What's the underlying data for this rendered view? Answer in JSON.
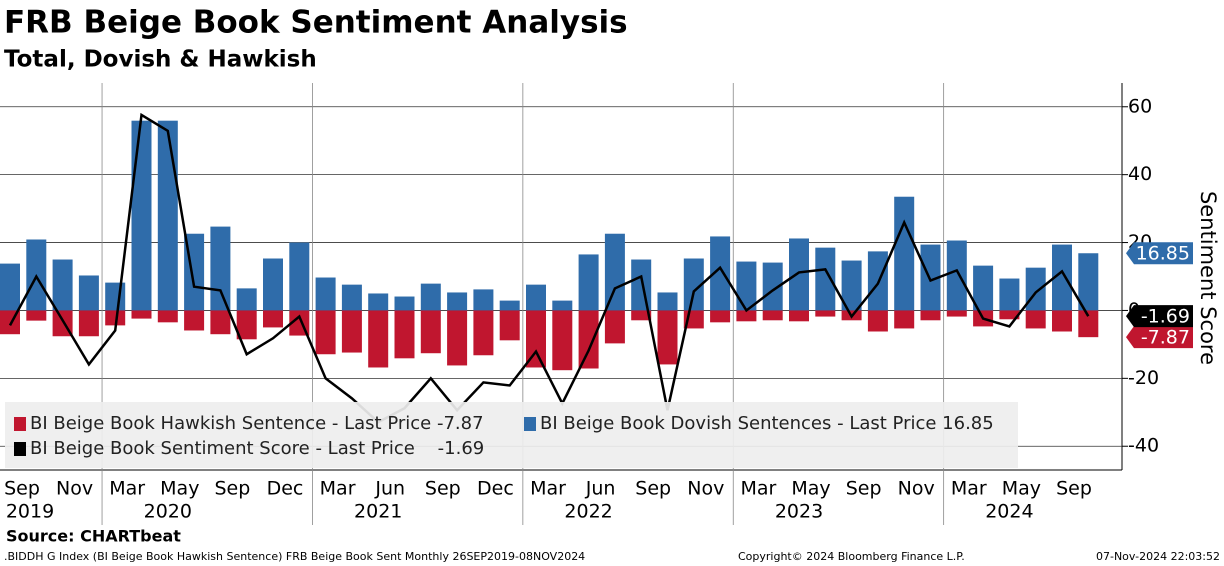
{
  "chart_data": {
    "type": "bar+line",
    "title": "FRB Beige Book Sentiment Analysis",
    "subtitle": "Total, Dovish & Hawkish",
    "y_label": "Sentiment Score",
    "source": "Source: CHARTbeat",
    "footer_left": ".BIDDH G Index (BI Beige Book Hawkish Sentence) FRB Beige Book Sent  Monthly 26SEP2019-08NOV2024",
    "footer_center": "Copyright© 2024 Bloomberg Finance L.P.",
    "footer_right": "07-Nov-2024 22:03:52",
    "categories": [
      "Sep",
      null,
      "Nov",
      null,
      "Mar",
      null,
      "May",
      null,
      "Sep",
      null,
      "Dec",
      null,
      "Mar",
      null,
      "Jun",
      null,
      "Sep",
      null,
      "Dec",
      null,
      "Mar",
      null,
      "Jun",
      null,
      "Sep",
      null,
      "Nov",
      null,
      "Mar",
      null,
      "May",
      null,
      "Sep",
      null,
      "Nov",
      null,
      "Mar",
      null,
      "May",
      null,
      "Sep",
      null
    ],
    "year_labels": [
      "2019",
      null,
      null,
      null,
      null,
      null,
      "2020",
      null,
      null,
      null,
      null,
      null,
      null,
      null,
      "2021",
      null,
      null,
      null,
      null,
      null,
      null,
      null,
      "2022",
      null,
      null,
      null,
      null,
      null,
      null,
      null,
      "2023",
      null,
      null,
      null,
      null,
      null,
      null,
      null,
      "2024",
      null,
      null,
      null
    ],
    "series": [
      {
        "name": "BI Beige Book Dovish Sentences - Last Price 16.85",
        "kind": "bar",
        "color": "#2f6caa",
        "values": [
          13.8,
          20.9,
          15,
          10.3,
          8.2,
          55.9,
          55.9,
          22.6,
          24.7,
          6.5,
          15.3,
          20,
          9.7,
          7.6,
          5,
          4.1,
          7.9,
          5.3,
          6.2,
          2.9,
          7.6,
          2.9,
          16.5,
          22.6,
          15,
          5.3,
          15.3,
          21.8,
          14.4,
          14.1,
          21.2,
          18.5,
          14.7,
          17.4,
          33.5,
          19.4,
          20.6,
          13.2,
          9.4,
          12.6,
          19.4,
          16.85
        ]
      },
      {
        "name": "BI Beige Book Hawkish Sentence - Last Price -7.87",
        "kind": "bar",
        "color": "#c0162f",
        "values": [
          -7,
          -3,
          -7.6,
          -7.6,
          -4.4,
          -2.4,
          -3.5,
          -5.9,
          -7,
          -8.5,
          -5,
          -7.4,
          -12.9,
          -12.4,
          -16.8,
          -14.1,
          -12.6,
          -16.2,
          -13.2,
          -8.8,
          -16.8,
          -17.6,
          -17.1,
          -9.7,
          -2.9,
          -15.9,
          -5.3,
          -3.5,
          -3.2,
          -2.9,
          -3.2,
          -1.8,
          -2.9,
          -6.2,
          -5.3,
          -2.9,
          -1.8,
          -4.7,
          -2.6,
          -5.3,
          -6.2,
          -7.87
        ]
      },
      {
        "name": "BI Beige Book Sentiment Score - Last Price    -1.69",
        "kind": "line",
        "color": "#000000",
        "values": [
          -4.4,
          10,
          -2.9,
          -15.9,
          -5.9,
          57.6,
          52.9,
          7,
          5.9,
          -12.9,
          -8.2,
          -1.8,
          -20,
          -25.9,
          -32.9,
          -28.8,
          -20,
          -29.4,
          -21.2,
          -22.1,
          -12.1,
          -27.4,
          -11.8,
          6.5,
          10,
          -29.4,
          5.6,
          12.6,
          0,
          5.9,
          11.2,
          12.1,
          -1.8,
          7.9,
          25.9,
          8.8,
          11.8,
          -2.4,
          -4.7,
          5.3,
          11.5,
          -1.69
        ]
      }
    ],
    "ylim": [
      -47,
      67
    ],
    "yticks": [
      -40,
      -20,
      0,
      20,
      40,
      60
    ],
    "grid": true
  }
}
